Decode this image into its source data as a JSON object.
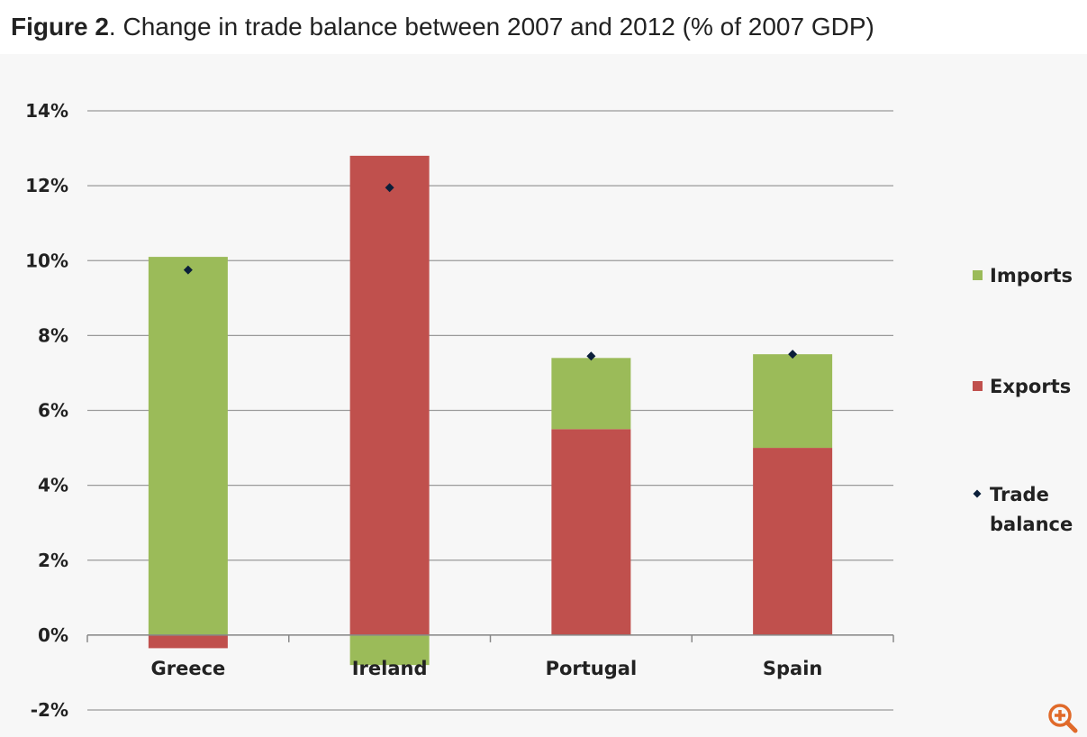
{
  "figure": {
    "title_bold": "Figure 2",
    "title_rest": ". Change in trade balance between 2007 and 2012 (% of 2007 GDP)"
  },
  "colors": {
    "imports": "#9bbb59",
    "exports": "#c0504d",
    "trade_balance": "#0b1f3a",
    "grid": "#9a9a9a",
    "zoom_icon": "#e06a2a"
  },
  "chart_data": {
    "type": "bar",
    "stacked": true,
    "categories": [
      "Greece",
      "Ireland",
      "Portugal",
      "Spain"
    ],
    "series": [
      {
        "name": "Imports",
        "values": [
          10.1,
          -0.8,
          1.9,
          2.5
        ],
        "color": "#9bbb59"
      },
      {
        "name": "Exports",
        "values": [
          -0.35,
          12.8,
          5.5,
          5.0
        ],
        "color": "#c0504d"
      }
    ],
    "markers": {
      "name": "Trade balance",
      "label_lines": [
        "Trade",
        "balance"
      ],
      "values": [
        9.75,
        11.95,
        7.45,
        7.5
      ]
    },
    "y_ticks": [
      "14%",
      "12%",
      "10%",
      "8%",
      "6%",
      "4%",
      "2%",
      "0%",
      "-2%"
    ],
    "ylim": [
      -2,
      14
    ],
    "grid": true,
    "legend_position": "right"
  },
  "icons": {
    "zoom": "zoom-in-icon"
  }
}
